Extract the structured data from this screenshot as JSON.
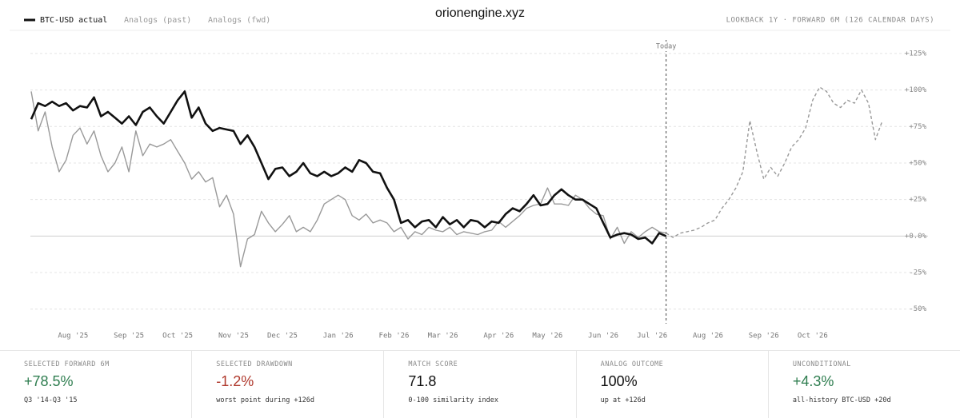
{
  "chart_data": {
    "type": "line",
    "title": "orionengine.xyz",
    "subtitle": "LOOKBACK 1Y · FORWARD 6M (126 CALENDAR DAYS)",
    "today_label": "Today",
    "categories": [
      null,
      null,
      null,
      null,
      null,
      null,
      "Aug '25",
      null,
      null,
      null,
      null,
      null,
      null,
      null,
      "Sep '25",
      null,
      null,
      null,
      null,
      null,
      null,
      "Oct '25",
      null,
      null,
      null,
      null,
      null,
      null,
      null,
      "Nov '25",
      null,
      null,
      null,
      null,
      null,
      null,
      "Dec '25",
      null,
      null,
      null,
      null,
      null,
      null,
      null,
      "Jan '26",
      null,
      null,
      null,
      null,
      null,
      null,
      null,
      "Feb '26",
      null,
      null,
      null,
      null,
      null,
      null,
      "Mar '26",
      null,
      null,
      null,
      null,
      null,
      null,
      null,
      "Apr '26",
      null,
      null,
      null,
      null,
      null,
      null,
      "May '26",
      null,
      null,
      null,
      null,
      null,
      null,
      null,
      "Jun '26",
      null,
      null,
      null,
      null,
      null,
      null,
      "Jul '26",
      null,
      null,
      null,
      null,
      null,
      null,
      null,
      "Aug '26",
      null,
      null,
      null,
      null,
      null,
      null,
      null,
      "Sep '26",
      null,
      null,
      null,
      null,
      null,
      null,
      "Oct '26",
      null,
      null,
      null,
      null,
      null,
      null,
      null,
      null,
      null,
      null
    ],
    "ylim": [
      -60,
      137
    ],
    "yticks": [
      {
        "value": 125,
        "label": "+125%"
      },
      {
        "value": 100,
        "label": "+100%"
      },
      {
        "value": 75,
        "label": "+75%"
      },
      {
        "value": 50,
        "label": "+50%"
      },
      {
        "value": 25,
        "label": "+25%"
      },
      {
        "value": 0,
        "label": "+0.0%"
      },
      {
        "value": -25,
        "label": "-25%"
      },
      {
        "value": -50,
        "label": "-50%"
      }
    ],
    "grid": true,
    "series": [
      {
        "name": "BTC-USD actual",
        "color": "#111111",
        "style": "solid-bold",
        "values": [
          80,
          91,
          89,
          92,
          89,
          91,
          86,
          89,
          88,
          95,
          82,
          85,
          81,
          77,
          82,
          76,
          85,
          88,
          82,
          77,
          85,
          93,
          99,
          81,
          88,
          77,
          72,
          74,
          73,
          72,
          63,
          69,
          61,
          50,
          39,
          46,
          47,
          41,
          44,
          50,
          43,
          41,
          44,
          41,
          43,
          47,
          44,
          52,
          50,
          44,
          43,
          33,
          25,
          9,
          11,
          6,
          10,
          11,
          6,
          13,
          8,
          11,
          6,
          11,
          10,
          6,
          10,
          9,
          15,
          19,
          17,
          22,
          28,
          21,
          22,
          28,
          32,
          28,
          25,
          25,
          22,
          19,
          9,
          -1,
          1,
          2,
          1,
          -2,
          -1,
          -5,
          2,
          0,
          null,
          null,
          null,
          null,
          null,
          null,
          null,
          null,
          null,
          null,
          null,
          null,
          null,
          null,
          null,
          null,
          null,
          null,
          null,
          null,
          null,
          null,
          null,
          null,
          null,
          null,
          null,
          null,
          null,
          null,
          null
        ]
      },
      {
        "name": "Analogs (past)",
        "color": "#999999",
        "style": "solid",
        "values": [
          99,
          72,
          85,
          61,
          44,
          52,
          69,
          74,
          63,
          72,
          55,
          44,
          50,
          61,
          44,
          72,
          55,
          63,
          61,
          63,
          66,
          58,
          50,
          39,
          44,
          37,
          40,
          20,
          28,
          15,
          -21,
          -2,
          1,
          17,
          9,
          3,
          8,
          14,
          3,
          6,
          3,
          11,
          22,
          25,
          28,
          25,
          14,
          11,
          15,
          9,
          11,
          9,
          3,
          6,
          -2,
          3,
          1,
          6,
          4,
          3,
          6,
          1,
          3,
          2,
          1,
          3,
          4,
          10,
          6,
          10,
          14,
          19,
          21,
          22,
          33,
          22,
          22,
          21,
          28,
          25,
          19,
          15,
          14,
          -2,
          6,
          -5,
          3,
          -1,
          3,
          6,
          3,
          2,
          null,
          null,
          null,
          null,
          null,
          null,
          null,
          null,
          null,
          null,
          null,
          null,
          null,
          null,
          null,
          null,
          null,
          null,
          null,
          null,
          null,
          null,
          null,
          null,
          null,
          null,
          null,
          null,
          null,
          null,
          null
        ]
      },
      {
        "name": "Analogs (fwd)",
        "color": "#999999",
        "style": "dashed",
        "values": [
          null,
          null,
          null,
          null,
          null,
          null,
          null,
          null,
          null,
          null,
          null,
          null,
          null,
          null,
          null,
          null,
          null,
          null,
          null,
          null,
          null,
          null,
          null,
          null,
          null,
          null,
          null,
          null,
          null,
          null,
          null,
          null,
          null,
          null,
          null,
          null,
          null,
          null,
          null,
          null,
          null,
          null,
          null,
          null,
          null,
          null,
          null,
          null,
          null,
          null,
          null,
          null,
          null,
          null,
          null,
          null,
          null,
          null,
          null,
          null,
          null,
          null,
          null,
          null,
          null,
          null,
          null,
          null,
          null,
          null,
          null,
          null,
          null,
          null,
          null,
          null,
          null,
          null,
          null,
          null,
          null,
          null,
          null,
          null,
          null,
          null,
          null,
          null,
          null,
          null,
          null,
          2,
          -1,
          2,
          3,
          4,
          6,
          9,
          11,
          19,
          25,
          33,
          44,
          79,
          58,
          39,
          47,
          41,
          50,
          61,
          66,
          74,
          93,
          102,
          99,
          91,
          88,
          93,
          91,
          100,
          91,
          66,
          79
        ]
      }
    ]
  },
  "stats": [
    {
      "label": "SELECTED FORWARD 6M",
      "value": "+78.5%",
      "note": "Q3 '14-Q3 '15",
      "color": "#2e7d4f"
    },
    {
      "label": "SELECTED DRAWDOWN",
      "value": "-1.2%",
      "note": "worst point during +126d",
      "color": "#b03a2e"
    },
    {
      "label": "MATCH SCORE",
      "value": "71.8",
      "note": "0-100 similarity index",
      "color": "#111111"
    },
    {
      "label": "ANALOG OUTCOME",
      "value": "100%",
      "note": "up at +126d",
      "color": "#111111"
    },
    {
      "label": "UNCONDITIONAL",
      "value": "+4.3%",
      "note": "all-history BTC-USD +20d",
      "color": "#2e7d4f"
    }
  ]
}
